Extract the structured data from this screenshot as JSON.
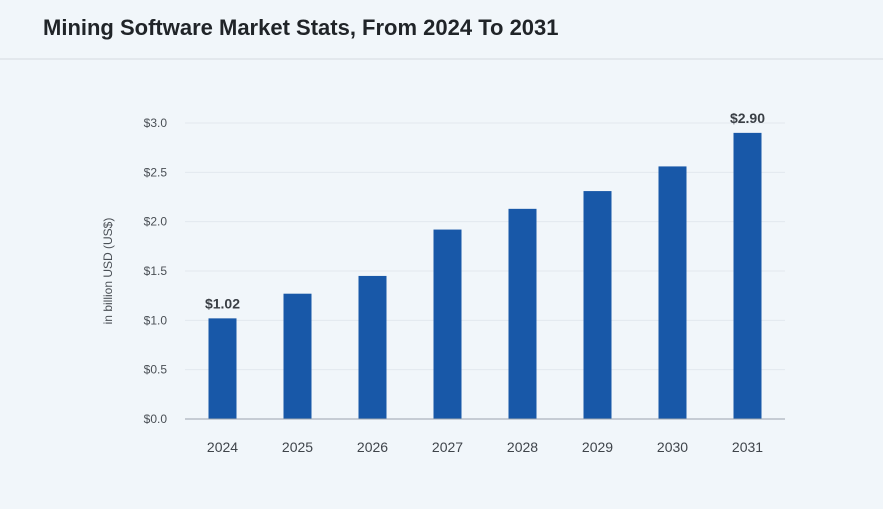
{
  "title": "Mining Software Market Stats, From 2024 To 2031",
  "chart_data": {
    "type": "bar",
    "categories": [
      "2024",
      "2025",
      "2026",
      "2027",
      "2028",
      "2029",
      "2030",
      "2031"
    ],
    "values": [
      1.02,
      1.27,
      1.45,
      1.92,
      2.13,
      2.31,
      2.56,
      2.9
    ],
    "ylabel": "in billion USD (US$)",
    "ylim": [
      0,
      3.0
    ],
    "yticks": [
      0.0,
      0.5,
      1.0,
      1.5,
      2.0,
      2.5,
      3.0
    ],
    "ytick_labels": [
      "$0.0",
      "$0.5",
      "$1.0",
      "$1.5",
      "$2.0",
      "$2.5",
      "$3.0"
    ],
    "data_labels": [
      {
        "category": "2024",
        "text": "$1.02"
      },
      {
        "category": "2031",
        "text": "$2.90"
      }
    ],
    "bar_color": "#1858a8",
    "grid": true,
    "legend": "none"
  }
}
